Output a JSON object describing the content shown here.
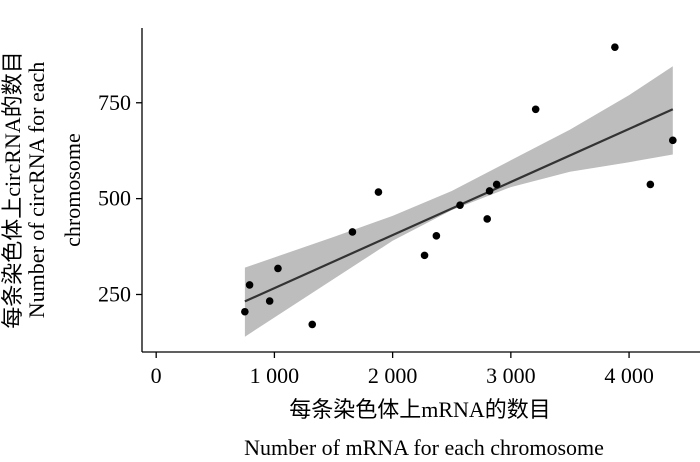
{
  "chart_data": {
    "type": "scatter",
    "xlabel_zh": "每条染色体上mRNA的数目",
    "xlabel_en": "Number of mRNA for each chromosome",
    "ylabel_zh": "每条染色体上circRNA的数目",
    "ylabel_en_1": "Number of circRNA for each",
    "ylabel_en_2": "chromosome",
    "x_ticks": [
      {
        "value": 0,
        "label": "0"
      },
      {
        "value": 1000,
        "label": "1 000"
      },
      {
        "value": 2000,
        "label": "2 000"
      },
      {
        "value": 3000,
        "label": "3 000"
      },
      {
        "value": 4000,
        "label": "4 000"
      }
    ],
    "y_ticks": [
      {
        "value": 250,
        "label": "250"
      },
      {
        "value": 500,
        "label": "500"
      },
      {
        "value": 750,
        "label": "750"
      }
    ],
    "xlim": [
      -120,
      4600
    ],
    "ylim": [
      100,
      945
    ],
    "grid": false,
    "colors": {
      "points": "#000000",
      "fit_line": "#333333",
      "confidence_band": "#bdbdbd"
    },
    "points": [
      {
        "x": 750,
        "y": 205
      },
      {
        "x": 790,
        "y": 275
      },
      {
        "x": 1030,
        "y": 318
      },
      {
        "x": 960,
        "y": 233
      },
      {
        "x": 1320,
        "y": 172
      },
      {
        "x": 1660,
        "y": 413
      },
      {
        "x": 1880,
        "y": 517
      },
      {
        "x": 2270,
        "y": 352
      },
      {
        "x": 2370,
        "y": 403
      },
      {
        "x": 2570,
        "y": 483
      },
      {
        "x": 2800,
        "y": 447
      },
      {
        "x": 2820,
        "y": 520
      },
      {
        "x": 2880,
        "y": 537
      },
      {
        "x": 3210,
        "y": 733
      },
      {
        "x": 3880,
        "y": 895
      },
      {
        "x": 4180,
        "y": 537
      },
      {
        "x": 4370,
        "y": 652
      }
    ],
    "fit": {
      "x": [
        750,
        4370
      ],
      "y": [
        232,
        733
      ]
    },
    "confidence_band": {
      "x": [
        750,
        1500,
        2000,
        2500,
        3000,
        3500,
        4000,
        4370
      ],
      "lower": [
        140,
        290,
        390,
        470,
        530,
        570,
        595,
        615
      ],
      "upper": [
        320,
        400,
        455,
        520,
        600,
        680,
        770,
        845
      ]
    }
  }
}
